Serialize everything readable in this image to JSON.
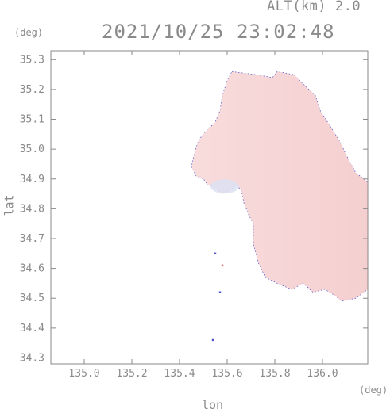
{
  "header": {
    "altitude_label": "ALT(km)  2.0",
    "datetime": "2021/10/25 23:02:48"
  },
  "axes": {
    "x_label": "lon",
    "y_label": "lat",
    "x_unit": "(deg)",
    "y_unit": "(deg)",
    "x_range": [
      134.86,
      136.19
    ],
    "y_range": [
      34.28,
      35.33
    ],
    "x_ticks": [
      135.0,
      135.2,
      135.4,
      135.6,
      135.8,
      136.0
    ],
    "x_tick_labels": [
      "135.0",
      "135.2",
      "135.4",
      "135.6",
      "135.8",
      "136.0"
    ],
    "y_ticks": [
      34.3,
      34.4,
      34.5,
      34.6,
      34.7,
      34.8,
      34.9,
      35.0,
      35.1,
      35.2,
      35.3
    ],
    "y_tick_labels": [
      "34.3",
      "34.4",
      "34.5",
      "34.6",
      "34.7",
      "34.8",
      "34.9",
      "35.0",
      "35.1",
      "35.2",
      "35.3"
    ]
  },
  "colors": {
    "axis": "#8a8a8a",
    "field_main": "#f8dcdc",
    "field_east": "#f5cfd0",
    "field_speck": "#e06060",
    "edge_blue": "#5050c8",
    "patch_blue": "#dde0f2"
  },
  "chart_data": {
    "type": "heatmap",
    "title": "2021/10/25 23:02:48",
    "xlabel": "lon",
    "ylabel": "lat",
    "xlim": [
      134.86,
      136.19
    ],
    "ylim": [
      34.28,
      35.33
    ],
    "data_region_outline": [
      [
        135.62,
        35.26
      ],
      [
        135.72,
        35.25
      ],
      [
        135.79,
        35.24
      ],
      [
        135.81,
        35.26
      ],
      [
        135.88,
        35.25
      ],
      [
        135.93,
        35.21
      ],
      [
        135.97,
        35.18
      ],
      [
        135.99,
        35.13
      ],
      [
        136.03,
        35.08
      ],
      [
        136.07,
        35.03
      ],
      [
        136.1,
        34.98
      ],
      [
        136.14,
        34.92
      ],
      [
        136.19,
        34.89
      ],
      [
        136.19,
        34.53
      ],
      [
        136.14,
        34.5
      ],
      [
        136.08,
        34.49
      ],
      [
        136.05,
        34.51
      ],
      [
        136.01,
        34.53
      ],
      [
        135.96,
        34.52
      ],
      [
        135.92,
        34.55
      ],
      [
        135.87,
        34.53
      ],
      [
        135.81,
        34.55
      ],
      [
        135.76,
        34.57
      ],
      [
        135.73,
        34.62
      ],
      [
        135.71,
        34.68
      ],
      [
        135.71,
        34.75
      ],
      [
        135.69,
        34.78
      ],
      [
        135.67,
        34.82
      ],
      [
        135.66,
        34.86
      ],
      [
        135.64,
        34.88
      ],
      [
        135.61,
        34.86
      ],
      [
        135.58,
        34.85
      ],
      [
        135.55,
        34.87
      ],
      [
        135.52,
        34.88
      ],
      [
        135.5,
        34.9
      ],
      [
        135.47,
        34.91
      ],
      [
        135.45,
        34.94
      ],
      [
        135.46,
        34.98
      ],
      [
        135.48,
        35.03
      ],
      [
        135.51,
        35.06
      ],
      [
        135.55,
        35.09
      ],
      [
        135.57,
        35.13
      ],
      [
        135.58,
        35.18
      ],
      [
        135.6,
        35.23
      ]
    ],
    "speck_points": [
      {
        "lon": 135.58,
        "lat": 34.61
      },
      {
        "lon": 135.55,
        "lat": 34.65
      },
      {
        "lon": 135.57,
        "lat": 34.52
      },
      {
        "lon": 135.54,
        "lat": 34.36
      }
    ],
    "grid": false,
    "legend": "none"
  }
}
